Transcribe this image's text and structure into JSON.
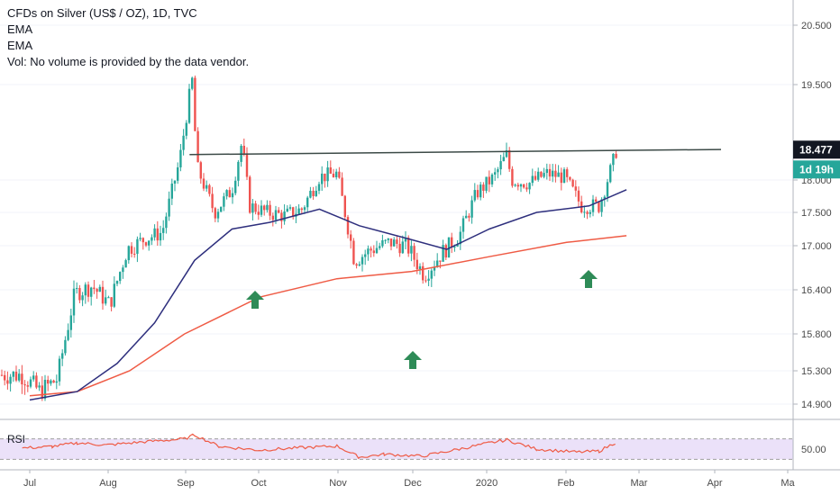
{
  "header": {
    "title": "CFDs on Silver (US$ / OZ), 1D, TVC",
    "indicators": [
      "EMA",
      "EMA"
    ],
    "volume_note": "Vol: No volume is provided by the data vendor."
  },
  "price_badges": {
    "last_price": "18.477",
    "countdown": "1d 19h"
  },
  "rsi": {
    "label": "RSI",
    "tick": "50.00"
  },
  "colors": {
    "up": "#26a69a",
    "down": "#ef5350",
    "ema_short": "#2e2f7d",
    "ema_long": "#ef5b45",
    "trendline": "#3c4a47",
    "arrow": "#2e8b57",
    "rsi_line": "#ef5b45",
    "rsi_band": "#e6d9f7",
    "badge_dark": "#131722",
    "badge_green": "#26a69a"
  },
  "chart_data": {
    "type": "candlestick",
    "title": "CFDs on Silver (US$ / OZ), 1D, TVC",
    "y_ticks": [
      20.5,
      19.5,
      18.0,
      17.5,
      17.0,
      16.4,
      15.8,
      15.3,
      14.9
    ],
    "y_tick_labels": [
      "20.500",
      "19.500",
      "18.000",
      "17.500",
      "17.000",
      "16.400",
      "15.800",
      "15.300",
      "14.900"
    ],
    "x_ticks": [
      "Jul",
      "Aug",
      "Sep",
      "Oct",
      "Nov",
      "Dec",
      "2020",
      "Feb",
      "Mar",
      "Apr",
      "Ma"
    ],
    "trendline": [
      {
        "date": "2019-09-03",
        "value": 18.4
      },
      {
        "date": "2020-02-25",
        "value": 18.48
      }
    ],
    "ema_short_points": [
      {
        "date": "2019-07-01",
        "value": 14.95
      },
      {
        "date": "2019-07-20",
        "value": 15.05
      },
      {
        "date": "2019-08-05",
        "value": 15.4
      },
      {
        "date": "2019-08-20",
        "value": 15.95
      },
      {
        "date": "2019-09-05",
        "value": 16.8
      },
      {
        "date": "2019-09-20",
        "value": 17.25
      },
      {
        "date": "2019-10-05",
        "value": 17.35
      },
      {
        "date": "2019-10-25",
        "value": 17.55
      },
      {
        "date": "2019-11-10",
        "value": 17.3
      },
      {
        "date": "2019-11-30",
        "value": 17.1
      },
      {
        "date": "2019-12-15",
        "value": 16.95
      },
      {
        "date": "2020-01-01",
        "value": 17.25
      },
      {
        "date": "2020-01-20",
        "value": 17.5
      },
      {
        "date": "2020-02-10",
        "value": 17.6
      },
      {
        "date": "2020-02-25",
        "value": 17.85
      }
    ],
    "ema_long_points": [
      {
        "date": "2019-07-01",
        "value": 15.0
      },
      {
        "date": "2019-07-20",
        "value": 15.05
      },
      {
        "date": "2019-08-10",
        "value": 15.3
      },
      {
        "date": "2019-09-01",
        "value": 15.8
      },
      {
        "date": "2019-10-01",
        "value": 16.3
      },
      {
        "date": "2019-11-01",
        "value": 16.55
      },
      {
        "date": "2019-12-01",
        "value": 16.65
      },
      {
        "date": "2020-01-01",
        "value": 16.85
      },
      {
        "date": "2020-02-01",
        "value": 17.05
      },
      {
        "date": "2020-02-25",
        "value": 17.15
      }
    ],
    "closes": [
      {
        "date": "2019-06-28",
        "value": 15.25
      },
      {
        "date": "2019-07-05",
        "value": 15.05
      },
      {
        "date": "2019-07-12",
        "value": 15.2
      },
      {
        "date": "2019-07-19",
        "value": 16.35
      },
      {
        "date": "2019-07-26",
        "value": 16.45
      },
      {
        "date": "2019-08-02",
        "value": 16.2
      },
      {
        "date": "2019-08-09",
        "value": 16.95
      },
      {
        "date": "2019-08-16",
        "value": 17.1
      },
      {
        "date": "2019-08-23",
        "value": 17.2
      },
      {
        "date": "2019-08-30",
        "value": 18.3
      },
      {
        "date": "2019-09-04",
        "value": 19.6
      },
      {
        "date": "2019-09-06",
        "value": 18.2
      },
      {
        "date": "2019-09-13",
        "value": 17.5
      },
      {
        "date": "2019-09-20",
        "value": 17.85
      },
      {
        "date": "2019-09-24",
        "value": 18.6
      },
      {
        "date": "2019-09-27",
        "value": 17.6
      },
      {
        "date": "2019-10-04",
        "value": 17.5
      },
      {
        "date": "2019-10-11",
        "value": 17.45
      },
      {
        "date": "2019-10-18",
        "value": 17.55
      },
      {
        "date": "2019-10-25",
        "value": 18.05
      },
      {
        "date": "2019-11-01",
        "value": 18.1
      },
      {
        "date": "2019-11-08",
        "value": 16.8
      },
      {
        "date": "2019-11-15",
        "value": 16.95
      },
      {
        "date": "2019-11-22",
        "value": 17.05
      },
      {
        "date": "2019-11-29",
        "value": 17.0
      },
      {
        "date": "2019-12-06",
        "value": 16.6
      },
      {
        "date": "2019-12-13",
        "value": 16.9
      },
      {
        "date": "2019-12-20",
        "value": 17.15
      },
      {
        "date": "2019-12-27",
        "value": 17.8
      },
      {
        "date": "2020-01-03",
        "value": 18.05
      },
      {
        "date": "2020-01-08",
        "value": 18.4
      },
      {
        "date": "2020-01-10",
        "value": 18.0
      },
      {
        "date": "2020-01-17",
        "value": 17.95
      },
      {
        "date": "2020-01-24",
        "value": 18.1
      },
      {
        "date": "2020-01-31",
        "value": 18.05
      },
      {
        "date": "2020-02-07",
        "value": 17.6
      },
      {
        "date": "2020-02-14",
        "value": 17.6
      },
      {
        "date": "2020-02-19",
        "value": 18.2
      },
      {
        "date": "2020-02-21",
        "value": 18.477
      }
    ],
    "rsi_points": [
      {
        "date": "2019-06-28",
        "value": 52
      },
      {
        "date": "2019-07-10",
        "value": 55
      },
      {
        "date": "2019-07-20",
        "value": 62
      },
      {
        "date": "2019-08-01",
        "value": 58
      },
      {
        "date": "2019-08-15",
        "value": 64
      },
      {
        "date": "2019-09-01",
        "value": 70
      },
      {
        "date": "2019-09-05",
        "value": 78
      },
      {
        "date": "2019-09-15",
        "value": 55
      },
      {
        "date": "2019-10-01",
        "value": 48
      },
      {
        "date": "2019-10-15",
        "value": 52
      },
      {
        "date": "2019-11-01",
        "value": 56
      },
      {
        "date": "2019-11-10",
        "value": 34
      },
      {
        "date": "2019-11-20",
        "value": 40
      },
      {
        "date": "2019-12-05",
        "value": 36
      },
      {
        "date": "2019-12-20",
        "value": 50
      },
      {
        "date": "2020-01-01",
        "value": 62
      },
      {
        "date": "2020-01-08",
        "value": 68
      },
      {
        "date": "2020-01-20",
        "value": 50
      },
      {
        "date": "2020-02-05",
        "value": 44
      },
      {
        "date": "2020-02-14",
        "value": 46
      },
      {
        "date": "2020-02-21",
        "value": 64
      }
    ]
  }
}
